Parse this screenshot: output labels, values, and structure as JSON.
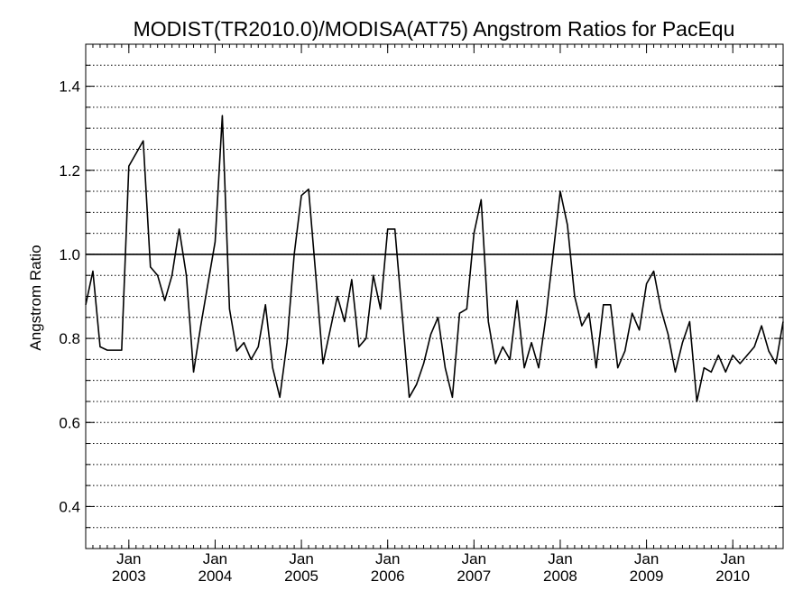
{
  "chart_data": {
    "type": "line",
    "title": "MODIST(TR2010.0)/MODISA(AT75)  Angstrom Ratios for PacEqu",
    "ylabel": "Angstrom Ratio",
    "xlabel": "",
    "xlim": [
      "2002-07",
      "2010-08"
    ],
    "ylim": [
      0.3,
      1.5
    ],
    "grid": "dotted horizontal lines every 0.05",
    "y_ticks": [
      {
        "value": 0.4,
        "label": "0.4"
      },
      {
        "value": 0.6,
        "label": "0.6"
      },
      {
        "value": 0.8,
        "label": "0.8"
      },
      {
        "value": 1.0,
        "label": "1.0"
      },
      {
        "value": 1.2,
        "label": "1.2"
      },
      {
        "value": 1.4,
        "label": "1.4"
      }
    ],
    "x_ticks": [
      {
        "date": "2003-01",
        "month": "Jan",
        "year": "2003"
      },
      {
        "date": "2004-01",
        "month": "Jan",
        "year": "2004"
      },
      {
        "date": "2005-01",
        "month": "Jan",
        "year": "2005"
      },
      {
        "date": "2006-01",
        "month": "Jan",
        "year": "2006"
      },
      {
        "date": "2007-01",
        "month": "Jan",
        "year": "2007"
      },
      {
        "date": "2008-01",
        "month": "Jan",
        "year": "2008"
      },
      {
        "date": "2009-01",
        "month": "Jan",
        "year": "2009"
      },
      {
        "date": "2010-01",
        "month": "Jan",
        "year": "2010"
      }
    ],
    "reference_line": 1.0,
    "series": [
      {
        "color": "#000000",
        "x": [
          "2002-07",
          "2002-08",
          "2002-09",
          "2002-10",
          "2002-11",
          "2002-12",
          "2003-01",
          "2003-02",
          "2003-03",
          "2003-04",
          "2003-05",
          "2003-06",
          "2003-07",
          "2003-08",
          "2003-09",
          "2003-10",
          "2003-11",
          "2003-12",
          "2004-01",
          "2004-02",
          "2004-03",
          "2004-04",
          "2004-05",
          "2004-06",
          "2004-07",
          "2004-08",
          "2004-09",
          "2004-10",
          "2004-11",
          "2004-12",
          "2005-01",
          "2005-02",
          "2005-03",
          "2005-04",
          "2005-05",
          "2005-06",
          "2005-07",
          "2005-08",
          "2005-09",
          "2005-10",
          "2005-11",
          "2005-12",
          "2006-01",
          "2006-02",
          "2006-03",
          "2006-04",
          "2006-05",
          "2006-06",
          "2006-07",
          "2006-08",
          "2006-09",
          "2006-10",
          "2006-11",
          "2006-12",
          "2007-01",
          "2007-02",
          "2007-03",
          "2007-04",
          "2007-05",
          "2007-06",
          "2007-07",
          "2007-08",
          "2007-09",
          "2007-10",
          "2007-11",
          "2007-12",
          "2008-01",
          "2008-02",
          "2008-03",
          "2008-04",
          "2008-05",
          "2008-06",
          "2008-07",
          "2008-08",
          "2008-09",
          "2008-10",
          "2008-11",
          "2008-12",
          "2009-01",
          "2009-02",
          "2009-03",
          "2009-04",
          "2009-05",
          "2009-06",
          "2009-07",
          "2009-08",
          "2009-09",
          "2009-10",
          "2009-11",
          "2009-12",
          "2010-01",
          "2010-02",
          "2010-03",
          "2010-04",
          "2010-05",
          "2010-06",
          "2010-07",
          "2010-08"
        ],
        "y": [
          0.88,
          0.96,
          0.78,
          0.772,
          0.772,
          0.772,
          1.21,
          1.24,
          1.27,
          0.97,
          0.95,
          0.89,
          0.95,
          1.06,
          0.95,
          0.72,
          0.83,
          0.93,
          1.03,
          1.33,
          0.87,
          0.77,
          0.79,
          0.75,
          0.78,
          0.88,
          0.73,
          0.66,
          0.79,
          1.0,
          1.14,
          1.155,
          0.95,
          0.74,
          0.82,
          0.9,
          0.84,
          0.94,
          0.78,
          0.8,
          0.95,
          0.87,
          1.06,
          1.06,
          0.86,
          0.66,
          0.69,
          0.74,
          0.81,
          0.85,
          0.73,
          0.66,
          0.86,
          0.87,
          1.05,
          1.13,
          0.84,
          0.74,
          0.78,
          0.75,
          0.89,
          0.73,
          0.79,
          0.73,
          0.85,
          1.0,
          1.15,
          1.07,
          0.9,
          0.83,
          0.86,
          0.73,
          0.88,
          0.88,
          0.73,
          0.77,
          0.86,
          0.82,
          0.93,
          0.96,
          0.87,
          0.81,
          0.72,
          0.79,
          0.84,
          0.65,
          0.73,
          0.72,
          0.76,
          0.72,
          0.76,
          0.74,
          0.76,
          0.78,
          0.83,
          0.77,
          0.74,
          0.84
        ]
      }
    ]
  }
}
